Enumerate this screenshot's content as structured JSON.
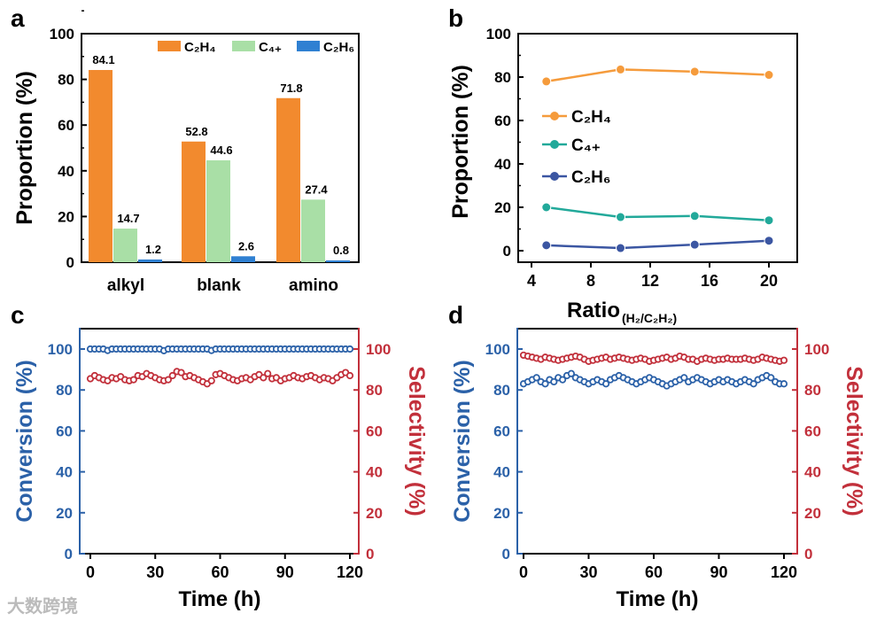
{
  "colors": {
    "a_c2h4": "#f28a2e",
    "a_c4": "#a9dfa6",
    "a_c2h6": "#2f80d2",
    "b_c2h4": "#f59b3c",
    "b_c4": "#22a99a",
    "b_c2h6": "#3b56a2",
    "conversion": "#2b61a8",
    "selectivity": "#c2303b"
  },
  "watermark": "大数跨境",
  "chart_data": [
    {
      "panel": "a",
      "type": "bar",
      "categories": [
        "alkyl",
        "blank",
        "amino"
      ],
      "series": [
        {
          "name": "C₂H₄",
          "values": [
            84.1,
            52.8,
            71.8
          ],
          "labels": [
            "84.1",
            "52.8",
            "71.8"
          ]
        },
        {
          "name": "C₄₊",
          "values": [
            14.7,
            44.6,
            27.4
          ],
          "labels": [
            "14.7",
            "44.6",
            "27.4"
          ]
        },
        {
          "name": "C₂H₆",
          "values": [
            1.2,
            2.6,
            0.8
          ],
          "labels": [
            "1.2",
            "2.6",
            "0.8"
          ]
        }
      ],
      "ylabel": "Proportion (%)",
      "xlabel": "",
      "ylim": [
        0,
        100
      ],
      "yticks": [
        "0",
        "20",
        "40",
        "60",
        "80",
        "100"
      ],
      "legend": "top-right"
    },
    {
      "panel": "b",
      "type": "line",
      "x": [
        5,
        10,
        15,
        20
      ],
      "series": [
        {
          "name": "C₂H₄",
          "values": [
            78,
            83.5,
            82.5,
            81
          ]
        },
        {
          "name": "C₄₊",
          "values": [
            20,
            15.5,
            16,
            14
          ]
        },
        {
          "name": "C₂H₆",
          "values": [
            2.5,
            1.2,
            2.8,
            4.6
          ]
        }
      ],
      "xlabel": "Ratio",
      "xlabel_sub": "(H₂/C₂H₂)",
      "ylabel": "Proportion (%)",
      "xlim": [
        3.1,
        21.9
      ],
      "ylim": [
        -5,
        100
      ],
      "xticks": [
        "4",
        "8",
        "12",
        "16",
        "20"
      ],
      "yticks": [
        "0",
        "20",
        "40",
        "60",
        "80",
        "100"
      ],
      "legend": "center-left"
    },
    {
      "panel": "c",
      "type": "scatter",
      "time_h": {
        "start": 0,
        "step": 2
      },
      "series": [
        {
          "name": "Conversion",
          "axis": "left",
          "values": [
            100,
            100,
            100,
            100,
            99.3,
            100,
            100,
            100,
            100,
            100,
            100,
            100,
            100,
            100,
            100,
            100,
            100,
            99.2,
            100,
            100,
            100,
            100,
            100,
            100,
            100,
            100,
            100,
            100,
            99.3,
            100,
            100,
            100,
            100,
            100,
            100,
            100,
            100,
            100,
            100,
            100,
            100,
            100,
            100,
            100,
            100,
            100,
            100,
            100,
            100,
            100,
            100,
            100,
            100,
            100,
            100,
            100,
            100,
            100,
            100,
            100,
            100
          ]
        },
        {
          "name": "Selectivity",
          "axis": "right",
          "values": [
            85.5,
            87,
            86,
            85,
            84.5,
            86,
            85.5,
            86.5,
            85,
            84.5,
            85,
            87,
            86.5,
            88,
            87,
            86,
            85,
            84.5,
            85,
            87,
            89,
            88.5,
            86.5,
            87,
            86,
            85,
            84,
            83,
            84.5,
            87.5,
            88,
            87,
            86,
            85,
            84.5,
            85.5,
            86,
            85,
            86.5,
            87.5,
            86,
            88,
            85.5,
            86,
            84.5,
            85.5,
            86,
            87,
            86,
            85.5,
            86.5,
            87,
            86,
            85,
            86,
            85.5,
            84.5,
            86,
            87.5,
            88.5,
            87
          ]
        }
      ],
      "xlabel": "Time (h)",
      "ylabel_left": "Conversion (%)",
      "ylabel_right": "Selectivity (%)",
      "xlim": [
        -4,
        124
      ],
      "ylim": [
        0,
        110
      ],
      "xticks": [
        "0",
        "30",
        "60",
        "90",
        "120"
      ],
      "yticks": [
        "0",
        "20",
        "40",
        "60",
        "80",
        "100"
      ]
    },
    {
      "panel": "d",
      "type": "scatter",
      "time_h": {
        "start": 0,
        "step": 2
      },
      "series": [
        {
          "name": "Conversion",
          "axis": "left",
          "values": [
            83,
            84,
            85,
            86,
            84,
            83,
            85,
            84,
            86,
            85,
            87,
            88,
            86,
            85,
            84,
            83,
            84,
            85,
            84,
            83,
            85,
            86,
            87,
            86,
            85,
            84,
            83,
            84,
            85,
            86,
            85,
            84,
            83,
            82,
            83,
            84,
            85,
            86,
            84,
            85,
            86,
            85,
            84,
            83,
            84,
            85,
            84,
            85,
            84,
            83,
            84,
            85,
            84,
            83,
            85,
            86,
            87,
            86,
            84,
            83,
            83
          ]
        },
        {
          "name": "Selectivity",
          "axis": "right",
          "values": [
            97,
            96.5,
            96,
            95.5,
            95,
            96,
            95.5,
            95,
            94.5,
            95,
            95.5,
            96,
            96.5,
            96,
            95,
            94,
            94.5,
            95,
            95.5,
            96,
            95,
            95.5,
            96,
            95.5,
            95,
            94.5,
            95,
            95.5,
            95,
            94,
            94.5,
            95,
            95.5,
            96,
            95,
            95.5,
            96.5,
            96,
            95,
            95,
            94,
            95,
            95.5,
            95,
            94.5,
            95,
            95,
            95.5,
            95,
            95,
            95,
            95.5,
            95,
            94.5,
            95,
            96,
            95.5,
            95,
            94.5,
            94,
            94.5
          ]
        }
      ],
      "xlabel": "Time (h)",
      "ylabel_left": "Conversion (%)",
      "ylabel_right": "Selectivity (%)",
      "xlim": [
        -4,
        124
      ],
      "ylim": [
        0,
        110
      ],
      "xticks": [
        "0",
        "30",
        "60",
        "90",
        "120"
      ],
      "yticks": [
        "0",
        "20",
        "40",
        "60",
        "80",
        "100"
      ]
    }
  ]
}
